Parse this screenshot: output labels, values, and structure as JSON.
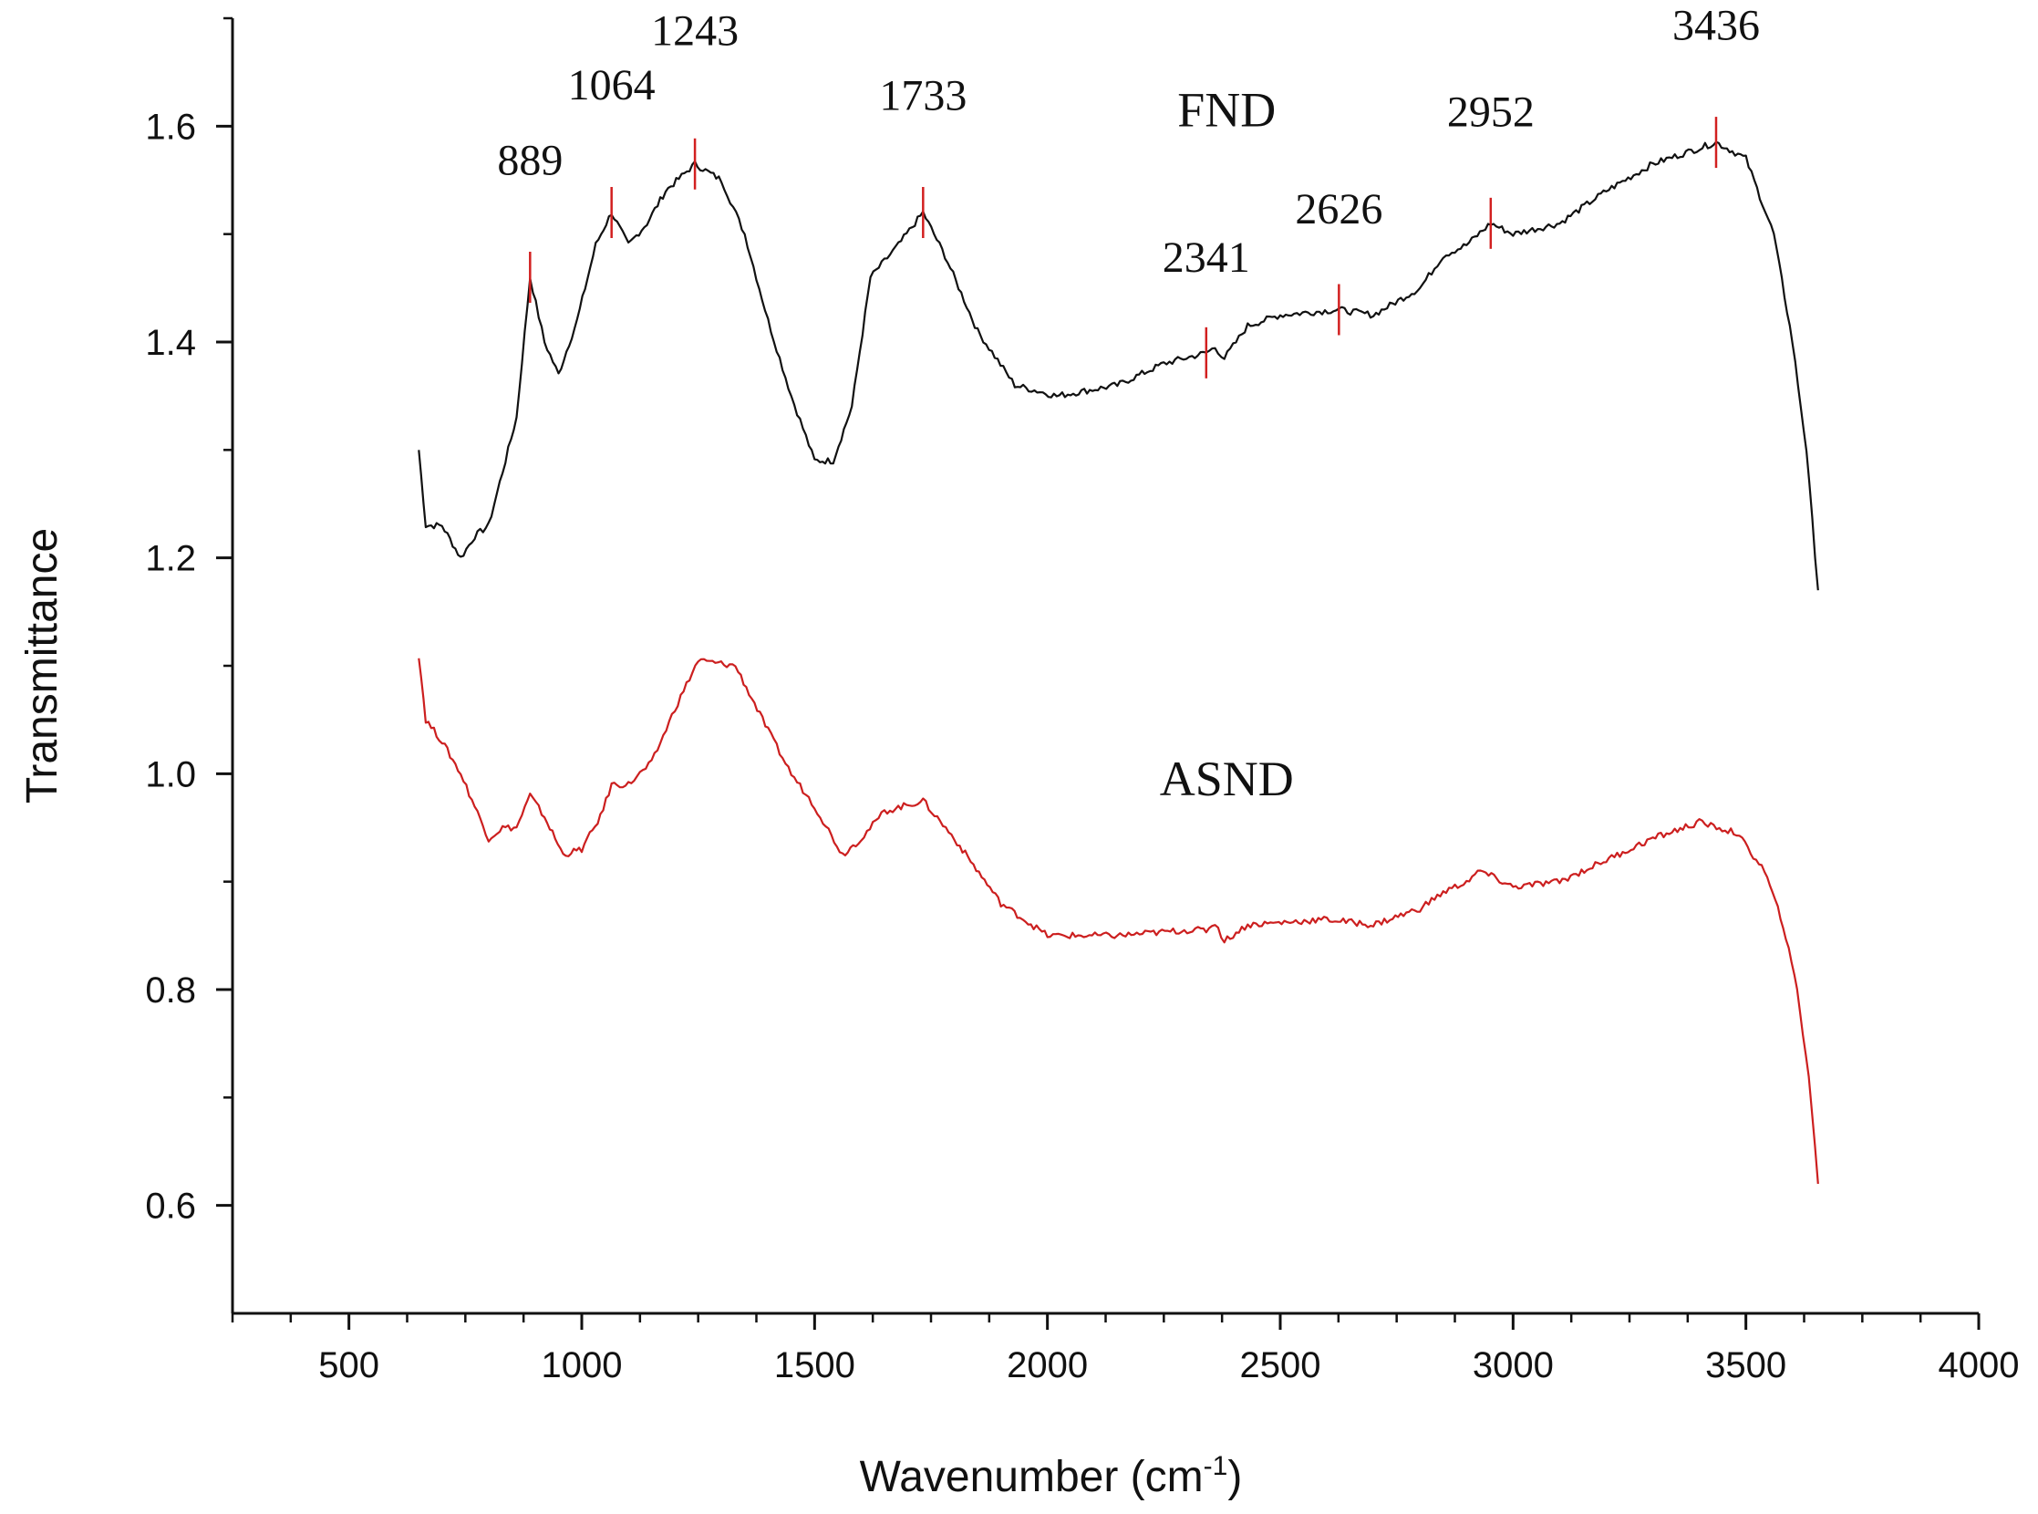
{
  "chart_data": {
    "type": "line",
    "title": "",
    "xlabel": {
      "text": "Wavenumber (cm",
      "sup": "-1",
      "close": ")"
    },
    "ylabel": "Transmittance",
    "xlim": [
      250,
      4000
    ],
    "ylim": [
      0.5,
      1.7
    ],
    "x_ticks": [
      500,
      1000,
      1500,
      2000,
      2500,
      3000,
      3500,
      4000
    ],
    "x_tick_labels": [
      "500",
      "1000",
      "1500",
      "2000",
      "2500",
      "3000",
      "3500",
      "4000"
    ],
    "y_ticks": [
      0.6,
      0.8,
      1.0,
      1.2,
      1.4,
      1.6
    ],
    "y_tick_labels": [
      "0.6",
      "0.8",
      "1.0",
      "1.2",
      "1.4",
      "1.6"
    ],
    "grid": false,
    "series": [
      {
        "name": "FND",
        "color": "#111111",
        "points": [
          [
            650,
            1.3
          ],
          [
            665,
            1.23
          ],
          [
            700,
            1.23
          ],
          [
            740,
            1.2
          ],
          [
            770,
            1.22
          ],
          [
            800,
            1.23
          ],
          [
            830,
            1.28
          ],
          [
            860,
            1.33
          ],
          [
            889,
            1.46
          ],
          [
            920,
            1.4
          ],
          [
            950,
            1.37
          ],
          [
            990,
            1.42
          ],
          [
            1030,
            1.49
          ],
          [
            1064,
            1.52
          ],
          [
            1100,
            1.49
          ],
          [
            1140,
            1.51
          ],
          [
            1180,
            1.54
          ],
          [
            1243,
            1.565
          ],
          [
            1300,
            1.55
          ],
          [
            1350,
            1.5
          ],
          [
            1400,
            1.42
          ],
          [
            1450,
            1.35
          ],
          [
            1500,
            1.29
          ],
          [
            1540,
            1.29
          ],
          [
            1580,
            1.34
          ],
          [
            1620,
            1.46
          ],
          [
            1680,
            1.49
          ],
          [
            1733,
            1.52
          ],
          [
            1780,
            1.48
          ],
          [
            1850,
            1.41
          ],
          [
            1930,
            1.36
          ],
          [
            2020,
            1.35
          ],
          [
            2150,
            1.36
          ],
          [
            2250,
            1.38
          ],
          [
            2341,
            1.39
          ],
          [
            2360,
            1.395
          ],
          [
            2380,
            1.385
          ],
          [
            2430,
            1.415
          ],
          [
            2500,
            1.425
          ],
          [
            2626,
            1.43
          ],
          [
            2700,
            1.425
          ],
          [
            2800,
            1.45
          ],
          [
            2850,
            1.48
          ],
          [
            2900,
            1.49
          ],
          [
            2952,
            1.51
          ],
          [
            3000,
            1.5
          ],
          [
            3100,
            1.51
          ],
          [
            3200,
            1.54
          ],
          [
            3300,
            1.565
          ],
          [
            3436,
            1.585
          ],
          [
            3500,
            1.57
          ],
          [
            3560,
            1.5
          ],
          [
            3600,
            1.4
          ],
          [
            3630,
            1.3
          ],
          [
            3655,
            1.17
          ]
        ]
      },
      {
        "name": "ASND",
        "color": "#cc1f1f",
        "points": [
          [
            650,
            1.11
          ],
          [
            665,
            1.05
          ],
          [
            700,
            1.03
          ],
          [
            740,
            1.0
          ],
          [
            770,
            0.97
          ],
          [
            800,
            0.94
          ],
          [
            830,
            0.95
          ],
          [
            860,
            0.95
          ],
          [
            889,
            0.98
          ],
          [
            920,
            0.96
          ],
          [
            960,
            0.925
          ],
          [
            1000,
            0.93
          ],
          [
            1040,
            0.96
          ],
          [
            1064,
            0.99
          ],
          [
            1100,
            0.99
          ],
          [
            1150,
            1.01
          ],
          [
            1200,
            1.06
          ],
          [
            1250,
            1.105
          ],
          [
            1330,
            1.1
          ],
          [
            1400,
            1.04
          ],
          [
            1450,
            1.0
          ],
          [
            1500,
            0.97
          ],
          [
            1560,
            0.925
          ],
          [
            1600,
            0.94
          ],
          [
            1650,
            0.965
          ],
          [
            1733,
            0.975
          ],
          [
            1800,
            0.94
          ],
          [
            1900,
            0.88
          ],
          [
            2000,
            0.85
          ],
          [
            2150,
            0.85
          ],
          [
            2300,
            0.855
          ],
          [
            2341,
            0.855
          ],
          [
            2360,
            0.862
          ],
          [
            2380,
            0.845
          ],
          [
            2430,
            0.86
          ],
          [
            2600,
            0.865
          ],
          [
            2700,
            0.86
          ],
          [
            2800,
            0.875
          ],
          [
            2850,
            0.89
          ],
          [
            2900,
            0.9
          ],
          [
            2930,
            0.91
          ],
          [
            3000,
            0.895
          ],
          [
            3100,
            0.9
          ],
          [
            3200,
            0.92
          ],
          [
            3300,
            0.94
          ],
          [
            3400,
            0.955
          ],
          [
            3480,
            0.945
          ],
          [
            3540,
            0.91
          ],
          [
            3580,
            0.86
          ],
          [
            3610,
            0.8
          ],
          [
            3635,
            0.72
          ],
          [
            3655,
            0.62
          ]
        ]
      }
    ],
    "series_labels": [
      {
        "text": "FND",
        "x": 2385,
        "y": 1.6
      },
      {
        "text": "ASND",
        "x": 2385,
        "y": 0.98
      }
    ],
    "peak_annotations": [
      {
        "label": "889",
        "x": 889,
        "y": 1.46,
        "text_y": 1.555
      },
      {
        "label": "1064",
        "x": 1064,
        "y": 1.52,
        "text_y": 1.625
      },
      {
        "label": "1243",
        "x": 1243,
        "y": 1.565,
        "text_y": 1.675
      },
      {
        "label": "1733",
        "x": 1733,
        "y": 1.52,
        "text_y": 1.615
      },
      {
        "label": "2341",
        "x": 2341,
        "y": 1.39,
        "text_y": 1.465
      },
      {
        "label": "2626",
        "x": 2626,
        "y": 1.43,
        "text_y": 1.51
      },
      {
        "label": "2952",
        "x": 2952,
        "y": 1.51,
        "text_y": 1.6
      },
      {
        "label": "3436",
        "x": 3436,
        "y": 1.585,
        "text_y": 1.68
      }
    ],
    "marker_color": "#d22020"
  }
}
